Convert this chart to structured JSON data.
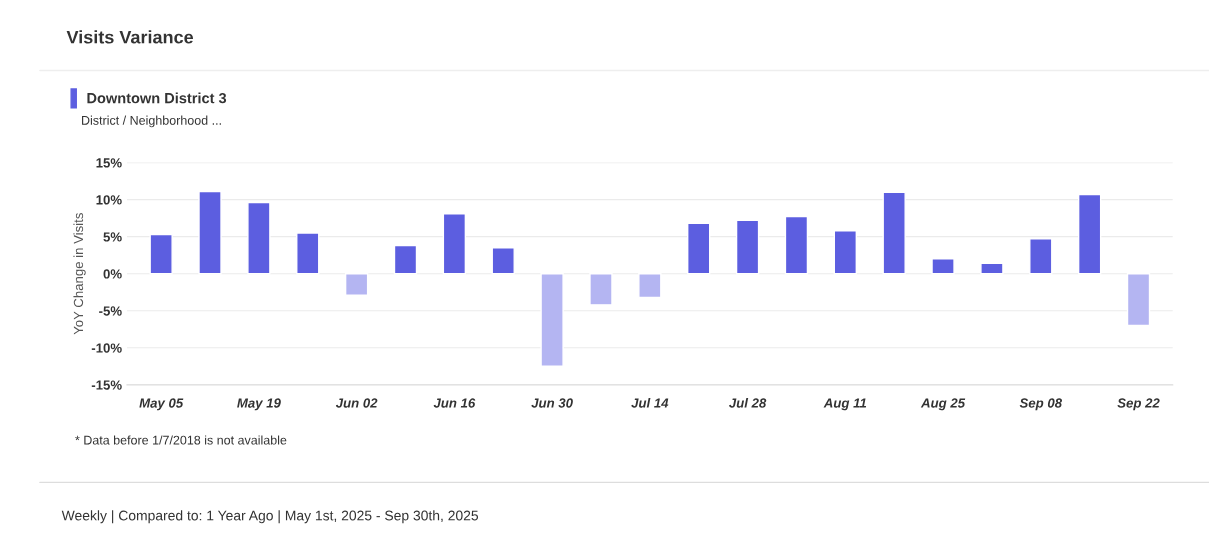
{
  "chart_data": {
    "type": "bar",
    "title": "Visits Variance",
    "ylabel": "YoY Change in Visits",
    "categories": [
      "May 05",
      null,
      "May 19",
      null,
      "Jun 02",
      null,
      "Jun 16",
      null,
      "Jun 30",
      null,
      "Jul 14",
      null,
      "Jul 28",
      null,
      "Aug 11",
      null,
      "Aug 25",
      null,
      "Sep 08",
      null,
      "Sep 22"
    ],
    "series": [
      {
        "name": "Downtown District 3",
        "color": "#5c5ee0",
        "values": [
          5.3,
          11.1,
          9.6,
          5.5,
          -2.9,
          3.8,
          8.1,
          3.5,
          -12.5,
          -4.2,
          -3.2,
          6.8,
          7.2,
          7.7,
          5.8,
          11.0,
          2.0,
          1.4,
          4.7,
          10.7,
          -7.0
        ],
        "colors": [
          "#5c5ee0",
          "#5c5ee0",
          "#5c5ee0",
          "#5c5ee0",
          "#b4b5f2",
          "#5c5ee0",
          "#5c5ee0",
          "#5c5ee0",
          "#b4b5f2",
          "#b4b5f2",
          "#b4b5f2",
          "#5c5ee0",
          "#5c5ee0",
          "#5c5ee0",
          "#5c5ee0",
          "#5c5ee0",
          "#5c5ee0",
          "#5c5ee0",
          "#5c5ee0",
          "#5c5ee0",
          "#b4b5f2"
        ]
      }
    ],
    "ylim": [
      -15,
      15
    ],
    "yticks": [
      {
        "value": -15,
        "label": "-15%"
      },
      {
        "value": -10,
        "label": "-10%"
      },
      {
        "value": -5,
        "label": "-5%"
      },
      {
        "value": 0,
        "label": "0%"
      },
      {
        "value": 5,
        "label": "5%"
      },
      {
        "value": 10,
        "label": "10%"
      },
      {
        "value": 15,
        "label": "15%"
      }
    ],
    "grid": "y",
    "legend": "top left",
    "annotations": [
      "District / Neighborhood ...",
      "* Data before 1/7/2018 is not available",
      "Weekly | Compared to: 1 Year Ago | May 1st, 2025 - Sep 30th, 2025"
    ]
  }
}
